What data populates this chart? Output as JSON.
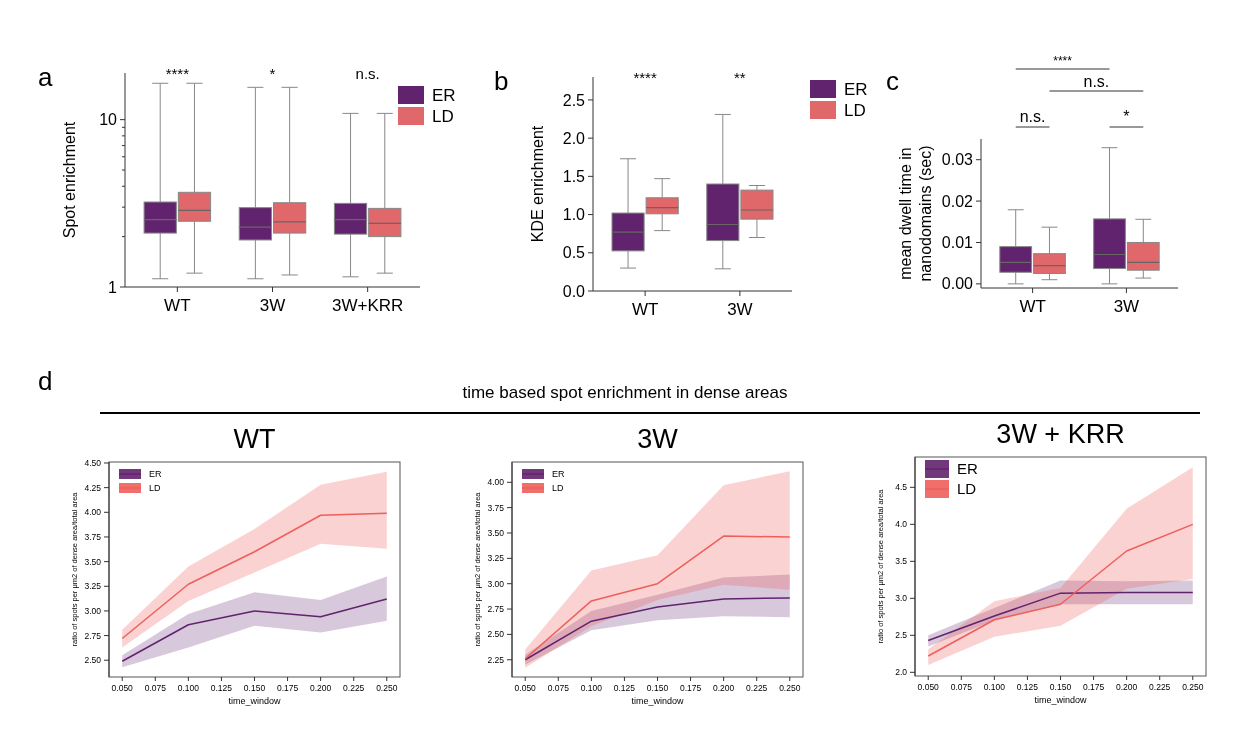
{
  "chart_data": [
    {
      "type": "box",
      "log": "y",
      "categories": [
        "WT",
        "3W",
        "3W+KRR"
      ],
      "ylabel": "Spot enrichment",
      "ylim": [
        1,
        19
      ],
      "yticks": [
        1,
        {
          "value": 2,
          "label": null
        },
        {
          "value": 3,
          "label": null
        },
        {
          "value": 4,
          "label": null
        },
        {
          "value": 5,
          "label": null
        },
        {
          "value": 6,
          "label": null
        },
        {
          "value": 7,
          "label": null
        },
        {
          "value": 8,
          "label": null
        },
        {
          "value": 9,
          "label": null
        },
        10
      ],
      "legend": "top right",
      "annotations": [
        "a",
        "****",
        "*",
        "n.s."
      ],
      "series": [
        {
          "name": "ER",
          "color": "#62236e",
          "boxes": [
            {
              "low": 1.12,
              "q1": 2.1,
              "median": 2.53,
              "q3": 3.22,
              "high": 16.5
            },
            {
              "low": 1.12,
              "q1": 1.91,
              "median": 2.28,
              "q3": 2.98,
              "high": 15.6
            },
            {
              "low": 1.15,
              "q1": 2.07,
              "median": 2.53,
              "q3": 3.16,
              "high": 10.9
            }
          ]
        },
        {
          "name": "LD",
          "color": "#e0676a",
          "boxes": [
            {
              "low": 1.21,
              "q1": 2.47,
              "median": 2.87,
              "q3": 3.68,
              "high": 16.5
            },
            {
              "low": 1.18,
              "q1": 2.1,
              "median": 2.45,
              "q3": 3.19,
              "high": 15.6
            },
            {
              "low": 1.21,
              "q1": 2.0,
              "median": 2.4,
              "q3": 2.95,
              "high": 10.9
            }
          ]
        }
      ]
    },
    {
      "type": "box",
      "categories": [
        "WT",
        "3W"
      ],
      "ylabel": "KDE enrichment",
      "ylim": [
        0,
        2.8
      ],
      "yticks": [
        {
          "value": 0,
          "label": "0.0"
        },
        {
          "value": 0.5,
          "label": "0.5"
        },
        {
          "value": 1,
          "label": "1.0"
        },
        {
          "value": 1.5,
          "label": "1.5"
        },
        {
          "value": 2,
          "label": "2.0"
        },
        {
          "value": 2.5,
          "label": "2.5"
        }
      ],
      "legend": "right",
      "annotations": [
        "b",
        "****",
        "**"
      ],
      "series": [
        {
          "name": "ER",
          "color": "#62236e",
          "boxes": [
            {
              "low": 0.3,
              "q1": 0.525,
              "median": 0.77,
              "q3": 1.02,
              "high": 1.73
            },
            {
              "low": 0.29,
              "q1": 0.66,
              "median": 0.87,
              "q3": 1.4,
              "high": 2.31
            }
          ]
        },
        {
          "name": "LD",
          "color": "#e0676a",
          "boxes": [
            {
              "low": 0.79,
              "q1": 1.01,
              "median": 1.09,
              "q3": 1.22,
              "high": 1.47
            },
            {
              "low": 0.7,
              "q1": 0.94,
              "median": 1.06,
              "q3": 1.32,
              "high": 1.38
            }
          ]
        }
      ]
    },
    {
      "type": "box",
      "categories": [
        "WT",
        "3W"
      ],
      "ylabel": "mean dwell time in nanodomains (sec)",
      "ylim": [
        -0.001,
        0.035
      ],
      "yticks": [
        {
          "value": 0,
          "label": "0.00"
        },
        {
          "value": 0.01,
          "label": "0.01"
        },
        {
          "value": 0.02,
          "label": "0.02"
        },
        {
          "value": 0.03,
          "label": "0.03"
        }
      ],
      "annotations": [
        "c",
        "****",
        "n.s.",
        "n.s.",
        "*"
      ],
      "series": [
        {
          "color": "#62236e",
          "boxes": [
            {
              "low": 0,
              "q1": 0.0028,
              "median": 0.0052,
              "q3": 0.009,
              "high": 0.0179
            },
            {
              "low": 0,
              "q1": 0.0037,
              "median": 0.0071,
              "q3": 0.0157,
              "high": 0.0329
            }
          ]
        },
        {
          "color": "#e0676a",
          "boxes": [
            {
              "low": 0.001,
              "q1": 0.0025,
              "median": 0.0044,
              "q3": 0.0073,
              "high": 0.0137
            },
            {
              "low": 0.0014,
              "q1": 0.0033,
              "median": 0.0052,
              "q3": 0.01,
              "high": 0.0156
            }
          ]
        }
      ]
    },
    {
      "type": "line",
      "title": "WT",
      "xlabel": "time_window",
      "ylabel": "ratio of spots per μm2 of dense area/total area",
      "x": [
        0.05,
        0.1,
        0.15,
        0.2,
        0.25
      ],
      "xlim": [
        0.04,
        0.26
      ],
      "ylim": [
        2.33,
        4.51
      ],
      "xticks": [
        {
          "value": 0.05,
          "label": "0.050"
        },
        {
          "value": 0.075,
          "label": "0.075"
        },
        {
          "value": 0.1,
          "label": "0.100"
        },
        {
          "value": 0.125,
          "label": "0.125"
        },
        {
          "value": 0.15,
          "label": "0.150"
        },
        {
          "value": 0.175,
          "label": "0.175"
        },
        {
          "value": 0.2,
          "label": "0.200"
        },
        {
          "value": 0.225,
          "label": "0.225"
        },
        {
          "value": 0.25,
          "label": "0.250"
        }
      ],
      "yticks": [
        {
          "value": 2.5,
          "label": "2.50"
        },
        {
          "value": 2.75,
          "label": "2.75"
        },
        {
          "value": 3,
          "label": "3.00"
        },
        {
          "value": 3.25,
          "label": "3.25"
        },
        {
          "value": 3.5,
          "label": "3.50"
        },
        {
          "value": 3.75,
          "label": "3.75"
        },
        {
          "value": 4,
          "label": "4.00"
        },
        {
          "value": 4.25,
          "label": "4.25"
        },
        {
          "value": 4.5,
          "label": "4.50"
        }
      ],
      "legend": "top left",
      "annotations": [
        "d",
        "time based spot enrichment in dense areas"
      ],
      "series": [
        {
          "name": "ER",
          "color": "#62236e",
          "values": [
            2.49,
            2.86,
            3.0,
            2.94,
            3.12
          ],
          "lower": [
            2.43,
            2.63,
            2.85,
            2.78,
            2.9
          ],
          "upper": [
            2.55,
            2.97,
            3.19,
            3.11,
            3.35
          ]
        },
        {
          "name": "LD",
          "color": "#ee5f5b",
          "values": [
            2.72,
            3.27,
            3.6,
            3.97,
            3.99
          ],
          "lower": [
            2.63,
            3.1,
            3.39,
            3.68,
            3.63
          ],
          "upper": [
            2.81,
            3.45,
            3.83,
            4.28,
            4.41
          ]
        }
      ]
    },
    {
      "type": "line",
      "title": "3W",
      "xlabel": "time_window",
      "ylabel": "ratio of spots per μm2 of dense area/total area",
      "x": [
        0.05,
        0.1,
        0.15,
        0.2,
        0.25
      ],
      "xlim": [
        0.04,
        0.26
      ],
      "ylim": [
        2.08,
        4.2
      ],
      "xticks": [
        {
          "value": 0.05,
          "label": "0.050"
        },
        {
          "value": 0.075,
          "label": "0.075"
        },
        {
          "value": 0.1,
          "label": "0.100"
        },
        {
          "value": 0.125,
          "label": "0.125"
        },
        {
          "value": 0.15,
          "label": "0.150"
        },
        {
          "value": 0.175,
          "label": "0.175"
        },
        {
          "value": 0.2,
          "label": "0.200"
        },
        {
          "value": 0.225,
          "label": "0.225"
        },
        {
          "value": 0.25,
          "label": "0.250"
        }
      ],
      "yticks": [
        {
          "value": 2.25,
          "label": "2.25"
        },
        {
          "value": 2.5,
          "label": "2.50"
        },
        {
          "value": 2.75,
          "label": "2.75"
        },
        {
          "value": 3,
          "label": "3.00"
        },
        {
          "value": 3.25,
          "label": "3.25"
        },
        {
          "value": 3.5,
          "label": "3.50"
        },
        {
          "value": 3.75,
          "label": "3.75"
        },
        {
          "value": 4,
          "label": "4.00"
        }
      ],
      "legend": "top left",
      "series": [
        {
          "name": "ER",
          "color": "#62236e",
          "values": [
            2.25,
            2.63,
            2.77,
            2.85,
            2.86
          ],
          "lower": [
            2.2,
            2.54,
            2.64,
            2.68,
            2.67
          ],
          "upper": [
            2.3,
            2.73,
            2.89,
            3.06,
            3.09
          ]
        },
        {
          "name": "LD",
          "color": "#ee5f5b",
          "values": [
            2.26,
            2.83,
            3.0,
            3.47,
            3.46
          ],
          "lower": [
            2.17,
            2.58,
            2.84,
            2.99,
            2.94
          ],
          "upper": [
            2.35,
            3.13,
            3.28,
            3.97,
            4.11
          ]
        }
      ]
    },
    {
      "type": "line",
      "title": "3W + KRR",
      "xlabel": "time_window",
      "ylabel": "ratio of spots per μm2 of dense area/total area",
      "x": [
        0.05,
        0.1,
        0.15,
        0.2,
        0.25
      ],
      "xlim": [
        0.04,
        0.26
      ],
      "ylim": [
        1.95,
        4.91
      ],
      "xticks": [
        {
          "value": 0.05,
          "label": "0.050"
        },
        {
          "value": 0.075,
          "label": "0.075"
        },
        {
          "value": 0.1,
          "label": "0.100"
        },
        {
          "value": 0.125,
          "label": "0.125"
        },
        {
          "value": 0.15,
          "label": "0.150"
        },
        {
          "value": 0.175,
          "label": "0.175"
        },
        {
          "value": 0.2,
          "label": "0.200"
        },
        {
          "value": 0.225,
          "label": "0.225"
        },
        {
          "value": 0.25,
          "label": "0.250"
        }
      ],
      "yticks": [
        {
          "value": 2,
          "label": "2.0"
        },
        {
          "value": 2.5,
          "label": "2.5"
        },
        {
          "value": 3,
          "label": "3.0"
        },
        {
          "value": 3.5,
          "label": "3.5"
        },
        {
          "value": 4,
          "label": "4.0"
        },
        {
          "value": 4.5,
          "label": "4.5"
        }
      ],
      "legend": "top left",
      "series": [
        {
          "name": "ER",
          "color": "#62236e",
          "values": [
            2.43,
            2.76,
            3.07,
            3.08,
            3.08
          ],
          "lower": [
            2.35,
            2.7,
            2.92,
            2.92,
            2.92
          ],
          "upper": [
            2.5,
            2.87,
            3.24,
            3.23,
            3.24
          ]
        },
        {
          "name": "LD",
          "color": "#ee5f5b",
          "values": [
            2.22,
            2.71,
            2.92,
            3.64,
            4.0
          ],
          "lower": [
            2.1,
            2.48,
            2.63,
            3.13,
            3.26
          ],
          "upper": [
            2.31,
            2.96,
            3.14,
            4.21,
            4.77
          ]
        }
      ]
    }
  ]
}
